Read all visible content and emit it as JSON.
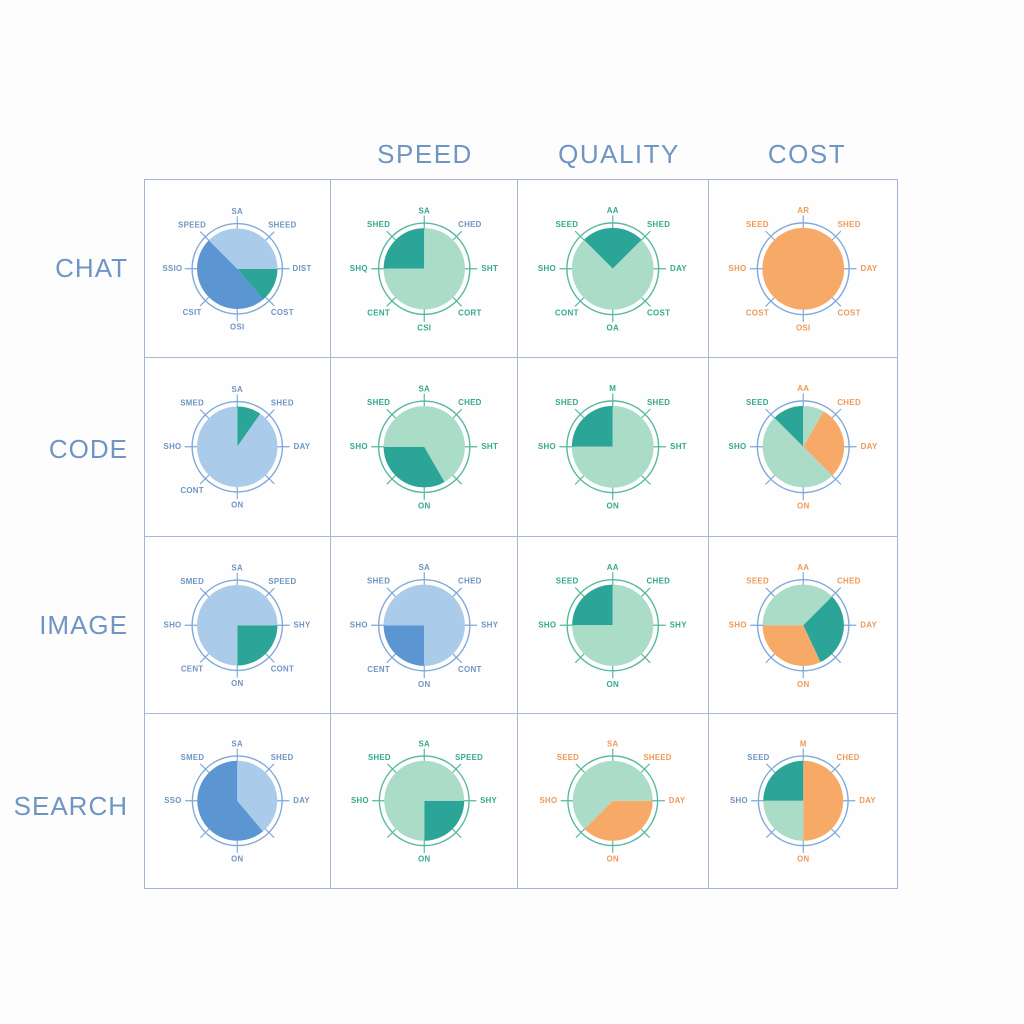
{
  "palette": {
    "background": "#fdfdfd",
    "grid_line": "#a9b8d8",
    "header_text": "#6e95c3",
    "ring": {
      "blue": "#7fa9d9",
      "green": "#56b8a0"
    },
    "label": {
      "blue": "#6e95c3",
      "green": "#35a98e",
      "orange": "#f09a55"
    },
    "slices": {
      "blue": "#5b96d2",
      "lightblue": "#abcbea",
      "teal": "#2ba597",
      "lightgreen": "#abdcc8",
      "orange": "#f7a968"
    }
  },
  "column_headers": [
    "SPEED",
    "QUALITY",
    "COST"
  ],
  "row_headers": [
    "CHAT",
    "CODE",
    "IMAGE",
    "SEARCH"
  ],
  "chart_data": {
    "type": "pie",
    "layout": "4x4-matrix",
    "angle_unit": "degrees_clockwise_from_top",
    "tick_count_per_ring": 8,
    "rows": [
      {
        "label": "CHAT",
        "cells": [
          {
            "column": "",
            "ring": "blue",
            "label_color": "blue",
            "labels": [
              "SA",
              "SHEED",
              "DIST",
              "COST",
              "OSI",
              "CSIT",
              "SSIO",
              "SPEED"
            ],
            "segments": [
              {
                "start": 90,
                "end": 140,
                "color": "teal"
              },
              {
                "start": 140,
                "end": 315,
                "color": "blue"
              },
              {
                "start": 315,
                "end": 450,
                "color": "lightblue"
              }
            ]
          },
          {
            "column": "SPEED",
            "ring": "green",
            "label_color": "green",
            "labels": [
              "SA",
              "CHED",
              "SHT",
              "CORT",
              "CSI",
              "CENT",
              "SHQ",
              "SHED"
            ],
            "label_colors": [
              "",
              "blue",
              "",
              "",
              "",
              "",
              "",
              ""
            ],
            "segments": [
              {
                "start": 270,
                "end": 360,
                "color": "teal"
              },
              {
                "start": 0,
                "end": 270,
                "color": "lightgreen"
              }
            ]
          },
          {
            "column": "QUALITY",
            "ring": "green",
            "label_color": "green",
            "labels": [
              "AA",
              "SHED",
              "DAY",
              "COST",
              "OA",
              "CONT",
              "SHO",
              "SEED"
            ],
            "segments": [
              {
                "start": 315,
                "end": 405,
                "color": "teal"
              },
              {
                "start": 45,
                "end": 315,
                "color": "lightgreen"
              }
            ]
          },
          {
            "column": "COST",
            "ring": "blue",
            "label_color": "orange",
            "labels": [
              "AR",
              "SHED",
              "DAY",
              "COST",
              "OSI",
              "COST",
              "SHO",
              "SEED"
            ],
            "segments": [
              {
                "start": 0,
                "end": 360,
                "color": "orange"
              }
            ]
          }
        ]
      },
      {
        "label": "CODE",
        "cells": [
          {
            "column": "",
            "ring": "blue",
            "label_color": "blue",
            "labels": [
              "SA",
              "SHED",
              "DAY",
              "",
              "ON",
              "CONT",
              "SHO",
              "SMED"
            ],
            "segments": [
              {
                "start": 0,
                "end": 35,
                "color": "teal"
              },
              {
                "start": 35,
                "end": 360,
                "color": "lightblue"
              }
            ]
          },
          {
            "column": "SPEED",
            "ring": "green",
            "label_color": "green",
            "labels": [
              "SA",
              "CHED",
              "SHT",
              "",
              "ON",
              "",
              "SHO",
              "SHED"
            ],
            "segments": [
              {
                "start": 150,
                "end": 270,
                "color": "teal"
              },
              {
                "start": 270,
                "end": 510,
                "color": "lightgreen"
              }
            ]
          },
          {
            "column": "QUALITY",
            "ring": "green",
            "label_color": "green",
            "labels": [
              "M",
              "SHED",
              "SHT",
              "",
              "ON",
              "",
              "SHO",
              "SHED"
            ],
            "segments": [
              {
                "start": 270,
                "end": 360,
                "color": "teal"
              },
              {
                "start": 0,
                "end": 270,
                "color": "lightgreen"
              }
            ]
          },
          {
            "column": "COST",
            "ring": "blue",
            "label_color": "orange",
            "labels": [
              "AA",
              "CHED",
              "DAY",
              "",
              "ON",
              "",
              "SHO",
              "SEED"
            ],
            "label_colors": [
              "",
              "",
              "",
              "",
              "",
              "",
              "green",
              "green"
            ],
            "segments": [
              {
                "start": 315,
                "end": 360,
                "color": "teal"
              },
              {
                "start": 0,
                "end": 30,
                "color": "lightgreen"
              },
              {
                "start": 30,
                "end": 135,
                "color": "orange"
              },
              {
                "start": 135,
                "end": 315,
                "color": "lightgreen"
              }
            ]
          }
        ]
      },
      {
        "label": "IMAGE",
        "cells": [
          {
            "column": "",
            "ring": "blue",
            "label_color": "blue",
            "labels": [
              "SA",
              "SPEED",
              "SHY",
              "CONT",
              "ON",
              "CENT",
              "SHO",
              "SMED"
            ],
            "segments": [
              {
                "start": 90,
                "end": 180,
                "color": "teal"
              },
              {
                "start": 180,
                "end": 450,
                "color": "lightblue"
              }
            ]
          },
          {
            "column": "SPEED",
            "ring": "blue",
            "label_color": "blue",
            "labels": [
              "SA",
              "CHED",
              "SHY",
              "CONT",
              "ON",
              "CENT",
              "SHO",
              "SHED"
            ],
            "segments": [
              {
                "start": 180,
                "end": 270,
                "color": "blue"
              },
              {
                "start": 270,
                "end": 540,
                "color": "lightblue"
              }
            ]
          },
          {
            "column": "QUALITY",
            "ring": "green",
            "label_color": "green",
            "labels": [
              "AA",
              "CHED",
              "SHY",
              "",
              "ON",
              "",
              "SHO",
              "SEED"
            ],
            "segments": [
              {
                "start": 270,
                "end": 360,
                "color": "teal"
              },
              {
                "start": 0,
                "end": 270,
                "color": "lightgreen"
              }
            ]
          },
          {
            "column": "COST",
            "ring": "blue",
            "label_color": "orange",
            "labels": [
              "AA",
              "CHED",
              "DAY",
              "",
              "ON",
              "",
              "SHO",
              "SEED"
            ],
            "segments": [
              {
                "start": 270,
                "end": 405,
                "color": "lightgreen"
              },
              {
                "start": 45,
                "end": 155,
                "color": "teal"
              },
              {
                "start": 155,
                "end": 270,
                "color": "orange"
              }
            ]
          }
        ]
      },
      {
        "label": "SEARCH",
        "cells": [
          {
            "column": "",
            "ring": "blue",
            "label_color": "blue",
            "labels": [
              "SA",
              "SHED",
              "DAY",
              "",
              "ON",
              "",
              "SSO",
              "SMED"
            ],
            "segments": [
              {
                "start": 0,
                "end": 140,
                "color": "lightblue"
              },
              {
                "start": 140,
                "end": 360,
                "color": "blue"
              }
            ]
          },
          {
            "column": "SPEED",
            "ring": "green",
            "label_color": "green",
            "labels": [
              "SA",
              "SPEED",
              "SHY",
              "",
              "ON",
              "",
              "SHO",
              "SHED"
            ],
            "segments": [
              {
                "start": 90,
                "end": 180,
                "color": "teal"
              },
              {
                "start": 180,
                "end": 450,
                "color": "lightgreen"
              }
            ]
          },
          {
            "column": "QUALITY",
            "ring": "green",
            "label_color": "orange",
            "labels": [
              "SA",
              "SHEED",
              "DAY",
              "",
              "ON",
              "",
              "SHO",
              "SEED"
            ],
            "segments": [
              {
                "start": 90,
                "end": 225,
                "color": "orange"
              },
              {
                "start": 225,
                "end": 450,
                "color": "lightgreen"
              }
            ]
          },
          {
            "column": "COST",
            "ring": "blue",
            "label_color": "orange",
            "labels": [
              "M",
              "CHED",
              "DAY",
              "",
              "ON",
              "",
              "SHO",
              "SEED"
            ],
            "label_colors": [
              "",
              "",
              "",
              "",
              "",
              "",
              "blue",
              "blue"
            ],
            "segments": [
              {
                "start": 0,
                "end": 180,
                "color": "orange"
              },
              {
                "start": 180,
                "end": 270,
                "color": "lightgreen"
              },
              {
                "start": 270,
                "end": 360,
                "color": "teal"
              }
            ]
          }
        ]
      }
    ]
  }
}
